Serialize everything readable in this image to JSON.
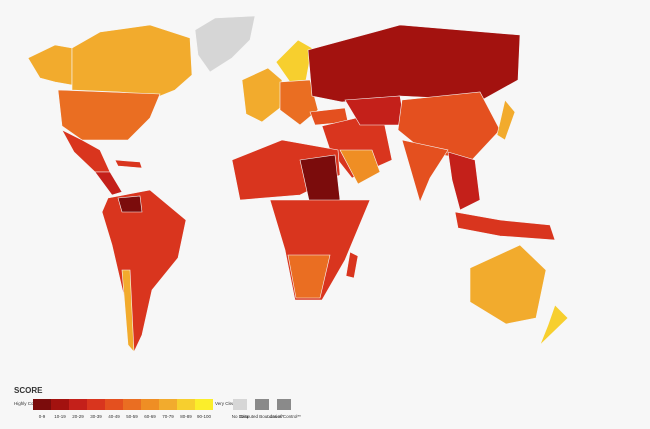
{
  "legend": {
    "title": "SCORE",
    "low_label": "Highly Corrupt",
    "high_label": "Very Clean",
    "bins": [
      {
        "label": "0-9",
        "color": "#7b0c0c"
      },
      {
        "label": "10-19",
        "color": "#a3120f"
      },
      {
        "label": "20-29",
        "color": "#c4201a"
      },
      {
        "label": "30-39",
        "color": "#d9351e"
      },
      {
        "label": "40-49",
        "color": "#e4501f"
      },
      {
        "label": "50-59",
        "color": "#ea6e22"
      },
      {
        "label": "60-69",
        "color": "#ef8e24"
      },
      {
        "label": "70-79",
        "color": "#f2ab2d"
      },
      {
        "label": "80-89",
        "color": "#f7cf2e"
      },
      {
        "label": "90-100",
        "color": "#fbee2b"
      }
    ],
    "extras": [
      {
        "label": "No Data",
        "color": "#d6d6d6"
      },
      {
        "label": "Disputed Boundaries*",
        "color": "#8a8a8a"
      },
      {
        "label": "Loss of Control**",
        "color": "#8a8a8a"
      }
    ]
  }
}
